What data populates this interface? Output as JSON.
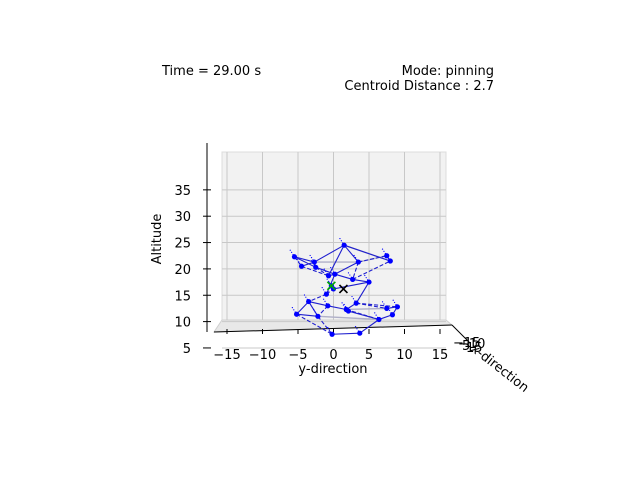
{
  "header": {
    "time_text": "Time = 29.00 s",
    "mode_text": "Mode: pinning",
    "centroid_text": "Centroid Distance : 2.7"
  },
  "chart_data": {
    "type": "scatter",
    "projection": "3d",
    "xlabel": "y-direction",
    "ylabel": "Altitude",
    "zlabel": "x-direction",
    "xticks": [
      "−15",
      "−10",
      "−5",
      "0",
      "5",
      "10",
      "15"
    ],
    "yticks": [
      "5",
      "10",
      "15",
      "20",
      "25",
      "30",
      "35"
    ],
    "zticks": [
      "−15",
      "−10",
      "5",
      "15"
    ],
    "xlim": [
      -18,
      16
    ],
    "ylim": [
      4,
      38
    ],
    "grid": true,
    "colors": {
      "agents": "#0000ff",
      "links": "#1f1fcf",
      "faint": "#b0b0c8",
      "centroid": "#00aa00",
      "target": "#000000"
    },
    "agents": [
      {
        "y": -5.5,
        "alt": 22.3
      },
      {
        "y": -4.5,
        "alt": 20.5
      },
      {
        "y": -2.7,
        "alt": 21.3
      },
      {
        "y": -2.5,
        "alt": 20.3
      },
      {
        "y": 1.5,
        "alt": 24.5
      },
      {
        "y": 3.5,
        "alt": 21.3
      },
      {
        "y": 7.5,
        "alt": 22.5
      },
      {
        "y": 8.0,
        "alt": 21.5
      },
      {
        "y": -0.7,
        "alt": 18.7
      },
      {
        "y": 0.2,
        "alt": 19.0
      },
      {
        "y": 2.7,
        "alt": 18.0
      },
      {
        "y": -1.0,
        "alt": 15.2
      },
      {
        "y": 5.0,
        "alt": 17.5
      },
      {
        "y": 0.0,
        "alt": 16.2
      },
      {
        "y": 3.2,
        "alt": 13.5
      },
      {
        "y": 7.5,
        "alt": 12.5
      },
      {
        "y": 9.0,
        "alt": 12.8
      },
      {
        "y": -3.5,
        "alt": 13.8
      },
      {
        "y": -0.8,
        "alt": 13.0
      },
      {
        "y": 1.8,
        "alt": 12.3
      },
      {
        "y": -2.2,
        "alt": 11.0
      },
      {
        "y": -5.2,
        "alt": 11.4
      },
      {
        "y": 6.4,
        "alt": 10.4
      },
      {
        "y": 8.3,
        "alt": 11.3
      },
      {
        "y": -0.2,
        "alt": 7.6
      },
      {
        "y": 3.7,
        "alt": 7.8
      },
      {
        "y": -0.3,
        "alt": 16.8
      },
      {
        "y": 2.1,
        "alt": 12.0
      }
    ],
    "links": [
      [
        0,
        1
      ],
      [
        0,
        2
      ],
      [
        1,
        2
      ],
      [
        2,
        3
      ],
      [
        2,
        4
      ],
      [
        4,
        5
      ],
      [
        5,
        6
      ],
      [
        4,
        7
      ],
      [
        6,
        7
      ],
      [
        3,
        8
      ],
      [
        8,
        9
      ],
      [
        9,
        10
      ],
      [
        5,
        10
      ],
      [
        10,
        12
      ],
      [
        9,
        11
      ],
      [
        11,
        13
      ],
      [
        13,
        12
      ],
      [
        12,
        14
      ],
      [
        14,
        15
      ],
      [
        15,
        16
      ],
      [
        14,
        19
      ],
      [
        11,
        17
      ],
      [
        17,
        18
      ],
      [
        18,
        19
      ],
      [
        18,
        20
      ],
      [
        20,
        21
      ],
      [
        17,
        21
      ],
      [
        19,
        22
      ],
      [
        22,
        23
      ],
      [
        23,
        16
      ],
      [
        20,
        24
      ],
      [
        24,
        25
      ],
      [
        25,
        22
      ],
      [
        21,
        24
      ],
      [
        19,
        27
      ],
      [
        27,
        22
      ],
      [
        1,
        8
      ],
      [
        5,
        9
      ],
      [
        3,
        9
      ],
      [
        11,
        26
      ],
      [
        26,
        13
      ],
      [
        8,
        4
      ],
      [
        10,
        7
      ],
      [
        0,
        3
      ],
      [
        17,
        20
      ],
      [
        14,
        16
      ]
    ],
    "faint_links": [
      [
        4,
        7
      ],
      [
        5,
        6
      ],
      [
        2,
        5
      ],
      [
        19,
        15
      ],
      [
        20,
        22
      ]
    ],
    "centroid": {
      "y": -0.3,
      "alt": 16.8
    },
    "target": {
      "y": 1.4,
      "alt": 16.2
    }
  }
}
